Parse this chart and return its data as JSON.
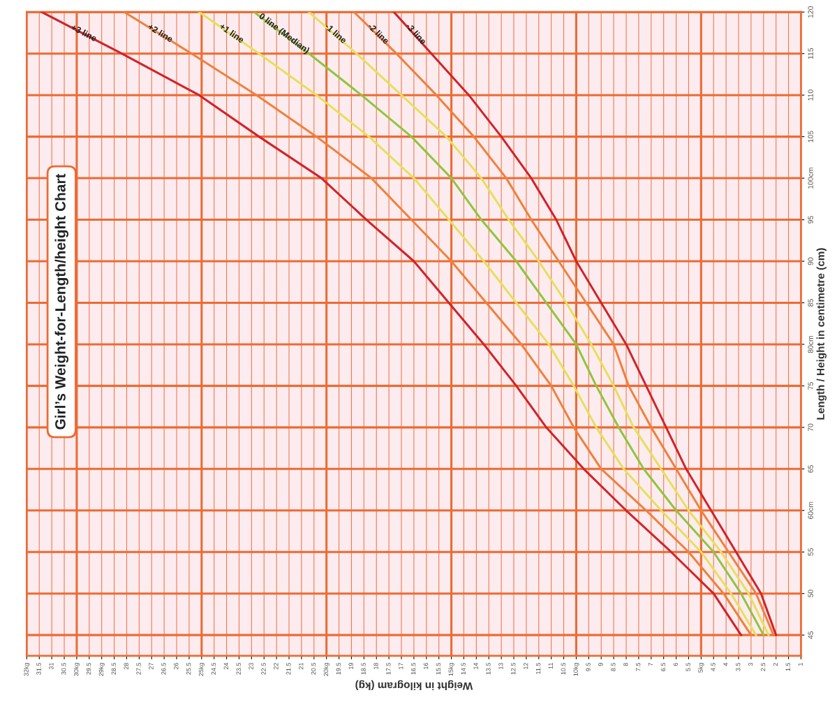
{
  "chart_data": {
    "type": "line",
    "title": "Girl’s Weight-for-Length/height Chart",
    "xlabel": "Weight in kilogram (kg)",
    "ylabel": "Length / Height in centimetre (cm)",
    "orientation": "horizontal",
    "x": [
      45,
      50,
      55,
      60,
      65,
      70,
      75,
      80,
      85,
      90,
      95,
      100,
      105,
      110,
      115,
      120
    ],
    "series": [
      {
        "name": "+3 line",
        "color": "#d2232a",
        "values": [
          3.4,
          4.5,
          6.2,
          8.0,
          9.7,
          11.2,
          12.4,
          13.7,
          15.1,
          16.5,
          18.4,
          20.2,
          22.7,
          25.1,
          28.2,
          31.4
        ]
      },
      {
        "name": "+2 line",
        "color": "#f0803c",
        "values": [
          3.0,
          4.1,
          5.5,
          7.2,
          9.0,
          10.1,
          11.0,
          12.2,
          13.6,
          15.0,
          16.6,
          18.2,
          20.4,
          22.8,
          25.4,
          28.1
        ]
      },
      {
        "name": "+1 line",
        "color": "#e6e05a",
        "values": [
          2.8,
          3.8,
          5.0,
          6.6,
          8.1,
          9.2,
          10.1,
          11.1,
          12.4,
          13.7,
          15.1,
          16.5,
          18.3,
          20.4,
          22.7,
          25.1
        ]
      },
      {
        "name": "0 line (Median)",
        "color": "#8dc63f",
        "values": [
          2.5,
          3.4,
          4.5,
          6.0,
          7.3,
          8.3,
          9.2,
          10.0,
          11.2,
          12.4,
          13.8,
          15.0,
          16.6,
          18.6,
          20.7,
          22.9
        ]
      },
      {
        "name": "-1 line",
        "color": "#e6e05a",
        "values": [
          2.3,
          3.1,
          4.2,
          5.5,
          6.6,
          7.7,
          8.5,
          9.4,
          10.4,
          11.5,
          12.7,
          13.8,
          15.2,
          17.0,
          18.8,
          20.7
        ]
      },
      {
        "name": "-2 line",
        "color": "#f0803c",
        "values": [
          2.1,
          2.8,
          3.9,
          5.0,
          6.0,
          7.0,
          7.9,
          8.5,
          9.6,
          10.7,
          11.8,
          12.8,
          14.1,
          15.6,
          17.2,
          18.9
        ]
      },
      {
        "name": "-3 line",
        "color": "#d2232a",
        "values": [
          2.0,
          2.6,
          3.6,
          4.6,
          5.6,
          6.4,
          7.2,
          8.0,
          9.0,
          10.0,
          10.8,
          11.8,
          13.0,
          14.3,
          15.8,
          17.3
        ]
      }
    ],
    "xlim": [
      32,
      1
    ],
    "xticks": [
      1,
      1.5,
      2,
      2.5,
      3,
      3.5,
      4,
      4.5,
      {
        "value": 5,
        "label": "5kg"
      },
      5.5,
      6,
      6.5,
      7,
      7.5,
      8,
      8.5,
      9,
      9.5,
      {
        "value": 10,
        "label": "10kg"
      },
      10.5,
      11,
      11.5,
      12,
      12.5,
      13,
      13.5,
      14,
      14.5,
      {
        "value": 15,
        "label": "15kg"
      },
      15.5,
      16,
      16.5,
      17,
      17.5,
      18,
      18.5,
      19,
      19.5,
      {
        "value": 20,
        "label": "20kg"
      },
      20.5,
      21,
      21.5,
      22,
      22.5,
      23,
      23.5,
      24,
      24.5,
      {
        "value": 25,
        "label": "25kg"
      },
      25.5,
      26,
      26.5,
      27,
      27.5,
      28,
      28.5,
      {
        "value": 29,
        "label": "29kg"
      },
      29.5,
      {
        "value": 30,
        "label": "30kg"
      },
      30.5,
      31,
      31.5,
      {
        "value": 32,
        "label": "32kg"
      }
    ],
    "ylim": [
      42.5,
      120
    ],
    "yticks": [
      45,
      50,
      55,
      {
        "value": 60,
        "label": "60cm"
      },
      65,
      70,
      75,
      {
        "value": 80,
        "label": "80cm"
      },
      85,
      90,
      95,
      {
        "value": 100,
        "label": "100cm"
      },
      105,
      110,
      115,
      120
    ],
    "grid": true,
    "legend": false,
    "marker": "none",
    "line_style": "solid"
  }
}
